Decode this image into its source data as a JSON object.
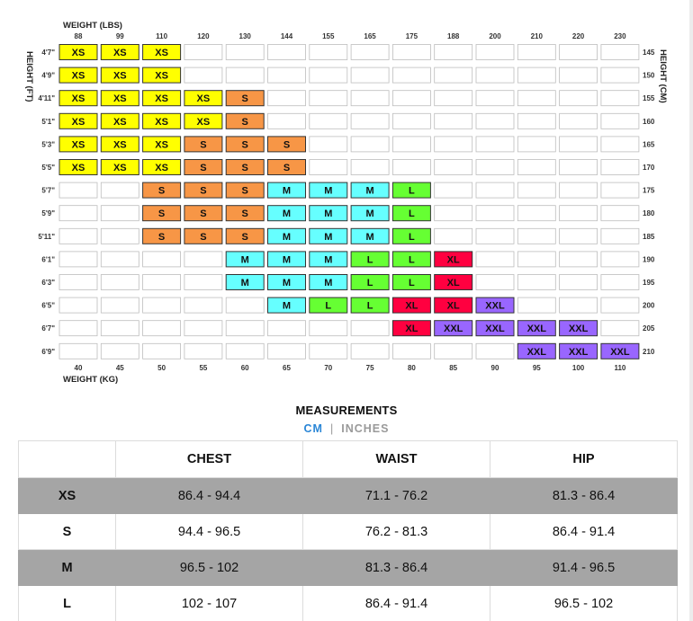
{
  "chart": {
    "weight_lbs_label": "WEIGHT (LBS)",
    "weight_kg_label": "WEIGHT (KG)",
    "height_ft_label": "HEIGHT (FT)",
    "height_cm_label": "HEIGHT (CM)",
    "lbs": [
      "88",
      "99",
      "110",
      "120",
      "130",
      "144",
      "155",
      "165",
      "175",
      "188",
      "200",
      "210",
      "220",
      "230"
    ],
    "kg": [
      "40",
      "45",
      "50",
      "55",
      "60",
      "65",
      "70",
      "75",
      "80",
      "85",
      "90",
      "95",
      "100",
      "110"
    ],
    "ft": [
      "4'7\"",
      "4'9\"",
      "4'11\"",
      "5'1\"",
      "5'3\"",
      "5'5\"",
      "5'7\"",
      "5'9\"",
      "5'11\"",
      "6'1\"",
      "6'3\"",
      "6'5\"",
      "6'7\"",
      "6'9\""
    ],
    "cm": [
      "145",
      "150",
      "155",
      "160",
      "165",
      "170",
      "175",
      "180",
      "185",
      "190",
      "195",
      "200",
      "205",
      "210"
    ],
    "colors": {
      "XS": "#ffff00",
      "S": "#f79646",
      "M": "#66ffff",
      "L": "#66ff33",
      "XL": "#ff0040",
      "XXL": "#9966ff",
      "empty": "#ffffff"
    },
    "grid": [
      [
        "XS",
        "XS",
        "XS",
        "",
        "",
        "",
        "",
        "",
        "",
        "",
        "",
        "",
        "",
        ""
      ],
      [
        "XS",
        "XS",
        "XS",
        "",
        "",
        "",
        "",
        "",
        "",
        "",
        "",
        "",
        "",
        ""
      ],
      [
        "XS",
        "XS",
        "XS",
        "XS",
        "S",
        "",
        "",
        "",
        "",
        "",
        "",
        "",
        "",
        ""
      ],
      [
        "XS",
        "XS",
        "XS",
        "XS",
        "S",
        "",
        "",
        "",
        "",
        "",
        "",
        "",
        "",
        ""
      ],
      [
        "XS",
        "XS",
        "XS",
        "S",
        "S",
        "S",
        "",
        "",
        "",
        "",
        "",
        "",
        "",
        ""
      ],
      [
        "XS",
        "XS",
        "XS",
        "S",
        "S",
        "S",
        "",
        "",
        "",
        "",
        "",
        "",
        "",
        ""
      ],
      [
        "",
        "",
        "S",
        "S",
        "S",
        "M",
        "M",
        "M",
        "L",
        "",
        "",
        "",
        "",
        ""
      ],
      [
        "",
        "",
        "S",
        "S",
        "S",
        "M",
        "M",
        "M",
        "L",
        "",
        "",
        "",
        "",
        ""
      ],
      [
        "",
        "",
        "S",
        "S",
        "S",
        "M",
        "M",
        "M",
        "L",
        "",
        "",
        "",
        "",
        ""
      ],
      [
        "",
        "",
        "",
        "",
        "M",
        "M",
        "M",
        "L",
        "L",
        "XL",
        "",
        "",
        "",
        ""
      ],
      [
        "",
        "",
        "",
        "",
        "M",
        "M",
        "M",
        "L",
        "L",
        "XL",
        "",
        "",
        "",
        ""
      ],
      [
        "",
        "",
        "",
        "",
        "",
        "M",
        "L",
        "L",
        "XL",
        "XL",
        "XXL",
        "",
        "",
        ""
      ],
      [
        "",
        "",
        "",
        "",
        "",
        "",
        "",
        "",
        "XL",
        "XXL",
        "XXL",
        "XXL",
        "XXL",
        ""
      ],
      [
        "",
        "",
        "",
        "",
        "",
        "",
        "",
        "",
        "",
        "",
        "",
        "XXL",
        "XXL",
        "XXL"
      ]
    ]
  },
  "measurements": {
    "title": "MEASUREMENTS",
    "unit_cm": "CM",
    "unit_sep": "|",
    "unit_inches": "INCHES",
    "headers": [
      "",
      "CHEST",
      "WAIST",
      "HIP"
    ],
    "rows": [
      {
        "size": "XS",
        "chest": "86.4 - 94.4",
        "waist": "71.1 - 76.2",
        "hip": "81.3 - 86.4"
      },
      {
        "size": "S",
        "chest": "94.4 - 96.5",
        "waist": "76.2 - 81.3",
        "hip": "86.4 - 91.4"
      },
      {
        "size": "M",
        "chest": "96.5 - 102",
        "waist": "81.3 - 86.4",
        "hip": "91.4 - 96.5"
      },
      {
        "size": "L",
        "chest": "102 - 107",
        "waist": "86.4 - 91.4",
        "hip": "96.5 - 102"
      }
    ]
  }
}
